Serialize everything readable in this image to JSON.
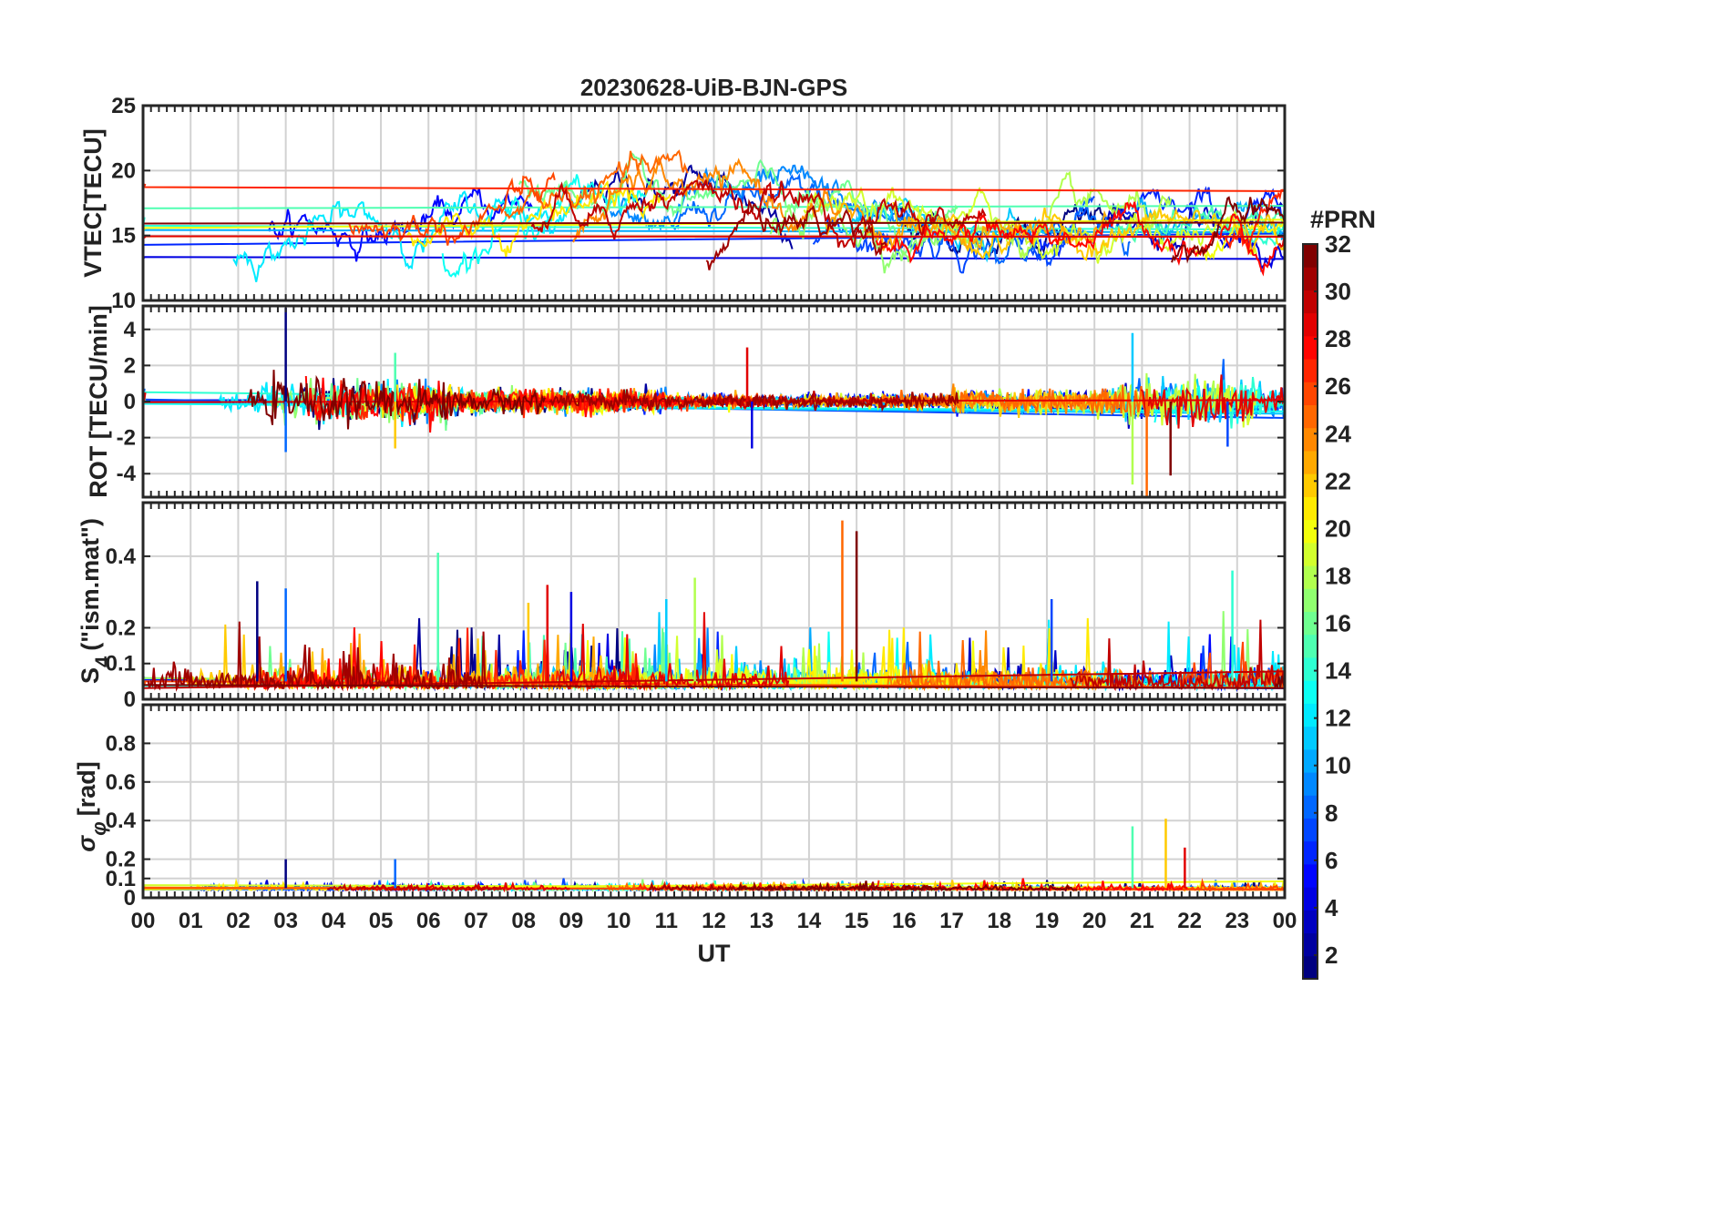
{
  "chart_data": [
    {
      "type": "line",
      "title": "20230628-UiB-BJN-GPS",
      "ylabel": "VTEC[TECU]",
      "ylim": [
        10,
        25
      ],
      "yticks": [
        10,
        15,
        20,
        25
      ],
      "xlim": [
        0,
        24
      ],
      "grid": true,
      "series_count": 32,
      "baseline": 15.5,
      "approx_daily_peak": 21.5,
      "approx_peak_time_ut": 10
    },
    {
      "type": "line",
      "ylabel": "ROT [TECU/min]",
      "ylim": [
        -5.3,
        5.3
      ],
      "yticks": [
        -4,
        -2,
        0,
        2,
        4
      ],
      "xlim": [
        0,
        24
      ],
      "grid": true,
      "series_count": 32,
      "spikes": [
        {
          "x": 3.0,
          "y": 5.2
        },
        {
          "x": 3.0,
          "y": -2.8
        },
        {
          "x": 5.3,
          "y": 2.7
        },
        {
          "x": 5.3,
          "y": -2.6
        },
        {
          "x": 12.7,
          "y": 3.0
        },
        {
          "x": 12.8,
          "y": -2.6
        },
        {
          "x": 20.8,
          "y": 3.8
        },
        {
          "x": 20.8,
          "y": -4.6
        },
        {
          "x": 21.1,
          "y": -5.3
        },
        {
          "x": 21.6,
          "y": -4.1
        },
        {
          "x": 22.8,
          "y": -2.5
        }
      ]
    },
    {
      "type": "line",
      "ylabel_main": "S",
      "ylabel_sub": "4",
      "ylabel_rest": "(\"ism.mat\")",
      "ylim": [
        0,
        0.55
      ],
      "yticks": [
        0,
        0.1,
        0.2,
        0.4
      ],
      "xlim": [
        0,
        24
      ],
      "grid": true,
      "series_count": 32,
      "peaks": [
        {
          "x": 2.4,
          "y": 0.33
        },
        {
          "x": 3.0,
          "y": 0.31
        },
        {
          "x": 6.2,
          "y": 0.41
        },
        {
          "x": 8.1,
          "y": 0.27
        },
        {
          "x": 8.5,
          "y": 0.32
        },
        {
          "x": 9.0,
          "y": 0.3
        },
        {
          "x": 11.0,
          "y": 0.28
        },
        {
          "x": 11.6,
          "y": 0.34
        },
        {
          "x": 14.7,
          "y": 0.5
        },
        {
          "x": 15.0,
          "y": 0.47
        },
        {
          "x": 19.1,
          "y": 0.28
        },
        {
          "x": 22.9,
          "y": 0.36
        }
      ]
    },
    {
      "type": "line",
      "ylabel_main": "σ",
      "ylabel_sub": "φ",
      "ylabel_rest": "[rad]",
      "ylim": [
        0,
        1.0
      ],
      "yticks": [
        0,
        0.1,
        0.2,
        0.4,
        0.6,
        0.8
      ],
      "xlim": [
        0,
        24
      ],
      "xticks": [
        "00",
        "01",
        "02",
        "03",
        "04",
        "05",
        "06",
        "07",
        "08",
        "09",
        "10",
        "11",
        "12",
        "13",
        "14",
        "15",
        "16",
        "17",
        "18",
        "19",
        "20",
        "21",
        "22",
        "23",
        "00"
      ],
      "xlabel": "UT",
      "grid": true,
      "series_count": 32,
      "peaks": [
        {
          "x": 3.0,
          "y": 0.2
        },
        {
          "x": 5.3,
          "y": 0.2
        },
        {
          "x": 20.8,
          "y": 0.37
        },
        {
          "x": 21.5,
          "y": 0.41
        },
        {
          "x": 21.9,
          "y": 0.26
        }
      ]
    }
  ],
  "colorbar": {
    "label": "#PRN",
    "ticks": [
      "2",
      "4",
      "6",
      "8",
      "10",
      "12",
      "14",
      "16",
      "18",
      "20",
      "22",
      "24",
      "26",
      "28",
      "30",
      "32"
    ],
    "range": [
      1,
      32
    ],
    "colormap": "jet"
  }
}
